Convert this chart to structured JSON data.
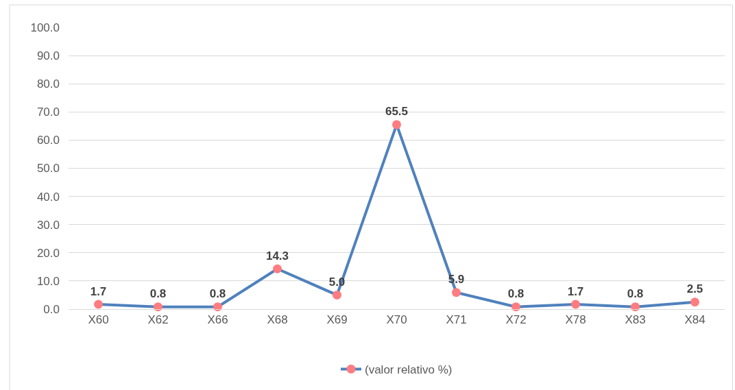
{
  "chart_data": {
    "type": "line",
    "categories": [
      "X60",
      "X62",
      "X66",
      "X68",
      "X69",
      "X70",
      "X71",
      "X72",
      "X78",
      "X83",
      "X84"
    ],
    "series": [
      {
        "name": "(valor relativo %)",
        "color": "#4f81bd",
        "colors": [
          "#ff7c80",
          "#ff7c80",
          "#ff7c80",
          "#ff7c80",
          "#ff7c80",
          "#ff7c80",
          "#ff7c80",
          "#ff7c80",
          "#ff7c80",
          "#ff7c80",
          "#ff7c80"
        ],
        "values": [
          1.7,
          0.8,
          0.8,
          14.3,
          5.0,
          65.5,
          5.9,
          0.8,
          1.7,
          0.8,
          2.5
        ],
        "value_labels": [
          "1.7",
          "0.8",
          "0.8",
          "14.3",
          "5.0",
          "65.5",
          "5.9",
          "0.8",
          "1.7",
          "0.8",
          "2.5"
        ]
      }
    ],
    "ylim": [
      0,
      100
    ],
    "yticks": [
      {
        "value": 0,
        "label": "0.0"
      },
      {
        "value": 10,
        "label": "10.0"
      },
      {
        "value": 20,
        "label": "20.0"
      },
      {
        "value": 30,
        "label": "30.0"
      },
      {
        "value": 40,
        "label": "40.0"
      },
      {
        "value": 50,
        "label": "50.0"
      },
      {
        "value": 60,
        "label": "60.0"
      },
      {
        "value": 70,
        "label": "70.0"
      },
      {
        "value": 80,
        "label": "80.0"
      },
      {
        "value": 90,
        "label": "90.0"
      },
      {
        "value": 100,
        "label": "100.0"
      }
    ],
    "grid": "y",
    "legend": "bottom",
    "marker": "circle",
    "line_style": "solid"
  }
}
